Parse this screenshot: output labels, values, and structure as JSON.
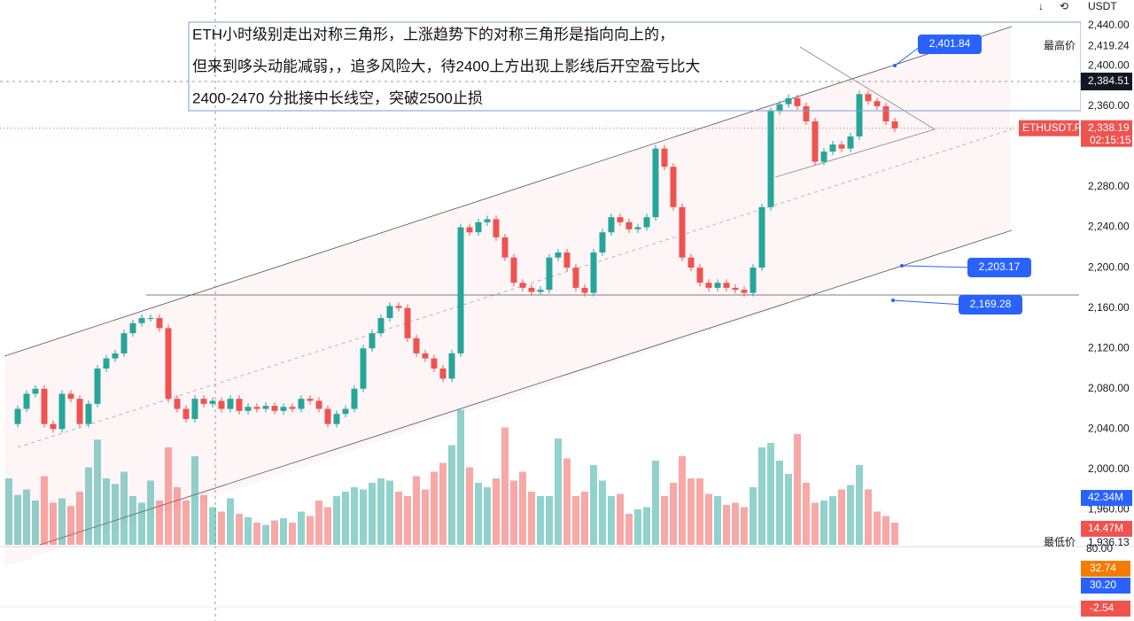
{
  "toolbar": {
    "currency": "USDT"
  },
  "annotation": {
    "lines": [
      "ETH小时级别走出对称三角形，上涨趋势下的对称三角形是指向向上的，",
      "但来到哆头动能减弱，，追多风险大，待2400上方出现上影线后开空盈亏比大",
      "2400-2470 分批接中长线空，突破2500止损"
    ]
  },
  "price_axis": {
    "ylim": [
      1920,
      2460
    ],
    "ticks": [
      {
        "value": 2440,
        "label": "2,440.00"
      },
      {
        "value": 2400,
        "label": "2,400.00"
      },
      {
        "value": 2360,
        "label": "2,360.00"
      },
      {
        "value": 2280,
        "label": "2,280.00"
      },
      {
        "value": 2240,
        "label": "2,240.00"
      },
      {
        "value": 2200,
        "label": "2,200.00"
      },
      {
        "value": 2160,
        "label": "2,160.00"
      },
      {
        "value": 2120,
        "label": "2,120.00"
      },
      {
        "value": 2080,
        "label": "2,080.00"
      },
      {
        "value": 2040,
        "label": "2,040.00"
      },
      {
        "value": 2000,
        "label": "2,000.00"
      },
      {
        "value": 1960,
        "label": "1,960.00"
      }
    ]
  },
  "markers": {
    "high": {
      "name": "最高价",
      "value": 2419.24,
      "label": "2,419.24"
    },
    "crosshair": {
      "value": 2384.51,
      "label": "2,384.51"
    },
    "last": {
      "symbol": "ETHUSDT.P",
      "value": 2338.19,
      "label": "2,338.19",
      "countdown": "02:15:15"
    },
    "low": {
      "name": "最低价",
      "value": 1936.13,
      "label": "1,936.13"
    }
  },
  "badges": [
    {
      "value": 2401.84,
      "label": "2,401.84"
    },
    {
      "value": 2203.17,
      "label": "2,203.17"
    },
    {
      "value": 2169.28,
      "label": "2,169.28"
    }
  ],
  "candles": {
    "closes": [
      2045,
      2060,
      2075,
      2080,
      2045,
      2040,
      2075,
      2070,
      2045,
      2065,
      2100,
      2110,
      2115,
      2135,
      2145,
      2150,
      2150,
      2140,
      2070,
      2060,
      2050,
      2070,
      2065,
      2068,
      2060,
      2070,
      2058,
      2062,
      2060,
      2063,
      2058,
      2062,
      2060,
      2070,
      2068,
      2060,
      2045,
      2055,
      2060,
      2080,
      2120,
      2135,
      2150,
      2162,
      2160,
      2130,
      2115,
      2110,
      2100,
      2090,
      2115,
      2240,
      2235,
      2245,
      2248,
      2230,
      2210,
      2185,
      2180,
      2176,
      2178,
      2210,
      2215,
      2200,
      2180,
      2175,
      2215,
      2235,
      2250,
      2245,
      2238,
      2240,
      2250,
      2318,
      2300,
      2260,
      2210,
      2200,
      2185,
      2180,
      2185,
      2180,
      2178,
      2175,
      2200,
      2260,
      2355,
      2362,
      2368,
      2360,
      2345,
      2305,
      2315,
      2322,
      2318,
      2330,
      2372,
      2365,
      2360,
      2345,
      2338
    ]
  },
  "volume": {
    "values": [
      60,
      45,
      50,
      40,
      62,
      38,
      42,
      35,
      48,
      70,
      95,
      60,
      55,
      66,
      44,
      38,
      58,
      40,
      88,
      52,
      40,
      80,
      45,
      34,
      30,
      42,
      28,
      25,
      20,
      18,
      22,
      24,
      20,
      30,
      26,
      40,
      34,
      44,
      48,
      52,
      50,
      56,
      60,
      58,
      48,
      44,
      62,
      50,
      66,
      74,
      90,
      122,
      70,
      56,
      52,
      60,
      106,
      58,
      66,
      48,
      44,
      44,
      96,
      78,
      44,
      48,
      72,
      58,
      44,
      46,
      28,
      32,
      34,
      76,
      44,
      56,
      80,
      60,
      60,
      46,
      44,
      36,
      38,
      34,
      52,
      88,
      92,
      76,
      64,
      100,
      56,
      38,
      40,
      44,
      50,
      54,
      72,
      50,
      30,
      26,
      20
    ],
    "ma": {
      "value": 42.34,
      "label": "42.34M"
    },
    "last": {
      "value": 14.47,
      "label": "14.47M"
    }
  },
  "macd": {
    "scale": "80.00",
    "signal": "32.74",
    "macd": "30.20",
    "hist": "-2.54"
  }
}
